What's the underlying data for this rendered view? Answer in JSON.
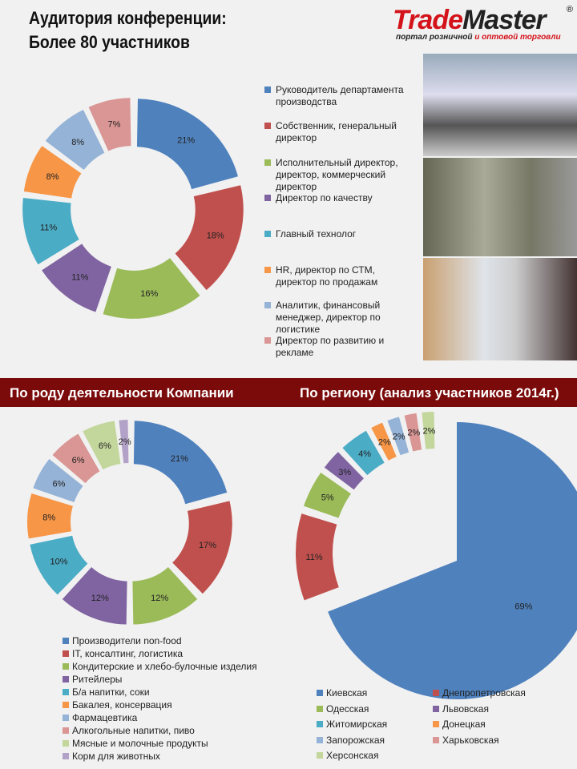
{
  "header": {
    "title_line1": "Аудитория конференции:",
    "title_line2": "Более 80 участников",
    "logo_trade": "Trade",
    "logo_master": "Master",
    "logo_sub1": "портал розничной",
    "logo_sub2": "и оптовой торговли",
    "logo_reg": "®"
  },
  "banner": {
    "left": "По роду деятельности Компании",
    "right": "По региону (анализ участников 2014г.)"
  },
  "colors": [
    "#4F81BD",
    "#C0504D",
    "#9BBB59",
    "#8064A2",
    "#4BACC6",
    "#F79646",
    "#95B3D7",
    "#D99694",
    "#C3D69B",
    "#B3A2C7"
  ],
  "chart_data": [
    {
      "type": "pie",
      "title": "Аудитория конференции",
      "categories": [
        "Руководитель департамента производства",
        "Собственник, генеральный директор",
        "Исполнительный директор, директор, коммерческий директор",
        "Директор по качеству",
        "Главный технолог",
        "HR, директор по СТМ, директор по продажам",
        "Аналитик, финансовый менеджер, директор по логистике",
        "Директор по развитию и рекламе"
      ],
      "values": [
        21,
        18,
        16,
        11,
        11,
        8,
        8,
        7
      ],
      "labels": [
        "21%",
        "18%",
        "16%",
        "11%",
        "11%",
        "8%",
        "8%",
        "7%"
      ],
      "legend": "right"
    },
    {
      "type": "pie",
      "title": "По роду деятельности Компании",
      "categories": [
        "Производители non-food",
        "IT, консалтинг, логистика",
        "Кондитерские и хлебо-булочные изделия",
        "Ритейлеры",
        "Б/а напитки, соки",
        "Бакалея, консервация",
        "Фармацевтика",
        "Алкогольные напитки, пиво",
        "Мясные и молочные продукты",
        "Корм для животных"
      ],
      "values": [
        21,
        17,
        12,
        12,
        10,
        8,
        6,
        6,
        6,
        2
      ],
      "labels": [
        "21%",
        "17%",
        "12%",
        "12%",
        "10%",
        "8%",
        "6%",
        "6%",
        "6%",
        "2%"
      ],
      "legend": "bottom"
    },
    {
      "type": "pie",
      "title": "По региону (анализ участников 2014г.)",
      "categories": [
        "Киевская",
        "Днепропетровская",
        "Одесская",
        "Львовская",
        "Житомирская",
        "Донецкая",
        "Запорожская",
        "Харьковская",
        "Херсонская"
      ],
      "values": [
        69,
        11,
        5,
        3,
        4,
        2,
        2,
        2,
        2
      ],
      "labels": [
        "69%",
        "11%",
        "5%",
        "3%",
        "4%",
        "2%",
        "2%",
        "2%",
        "2%"
      ],
      "legend": "bottom"
    }
  ]
}
